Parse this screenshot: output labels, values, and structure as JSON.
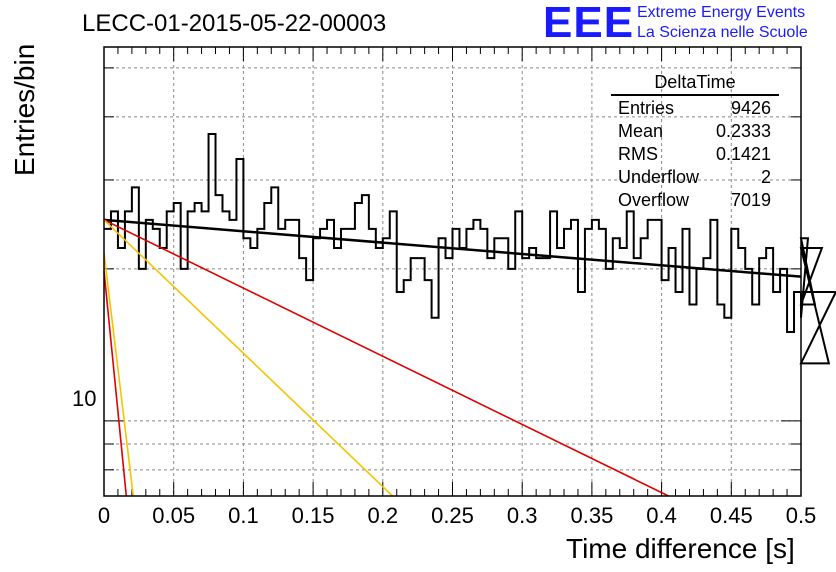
{
  "header": {
    "run_title": "LECC-01-2015-05-22-00003",
    "logo_text": "EEE",
    "logo_line1": "Extreme Energy Events",
    "logo_line2": "La Scienza nelle Scuole",
    "logo_color": "#1a1aff"
  },
  "stats": {
    "title": "DeltaTime",
    "rows": [
      {
        "label": "Entries",
        "value": "9426"
      },
      {
        "label": "Mean",
        "value": "0.2333"
      },
      {
        "label": "RMS",
        "value": "0.1421"
      },
      {
        "label": "Underflow",
        "value": "2"
      },
      {
        "label": "Overflow",
        "value": "7019"
      }
    ]
  },
  "chart_data": {
    "type": "line",
    "xlabel": "Time difference [s]",
    "ylabel": "Entries/bin",
    "xlim": [
      0,
      0.5
    ],
    "ylim": [
      7.1,
      55
    ],
    "yscale": "log",
    "grid": true,
    "x_ticks": [
      "0",
      "0.05",
      "0.1",
      "0.15",
      "0.2",
      "0.25",
      "0.3",
      "0.35",
      "0.4",
      "0.45",
      "0.5"
    ],
    "y_tick_labels": [
      "10"
    ],
    "histogram": {
      "bin_width": 0.005,
      "values": [
        24,
        26,
        22,
        26,
        29,
        20,
        25,
        24,
        22,
        26,
        27,
        20,
        26,
        27,
        26,
        37,
        28,
        26,
        25,
        33,
        23,
        22,
        24,
        27,
        29,
        24,
        25,
        25,
        21,
        19,
        23,
        24,
        25,
        22,
        24,
        24,
        27,
        28,
        24,
        22,
        23,
        26,
        18,
        19,
        21,
        21,
        19,
        16,
        23,
        21,
        24,
        22,
        24,
        25,
        24,
        21,
        23,
        23,
        20,
        26,
        21,
        22,
        21,
        21,
        26,
        22,
        24,
        25,
        18,
        24,
        25,
        24,
        20,
        23,
        22,
        26,
        21,
        23,
        25,
        25,
        19,
        22,
        18,
        24,
        17,
        20,
        21,
        25,
        17,
        16,
        24,
        22,
        20,
        17,
        21,
        22,
        18,
        20,
        15,
        18,
        16,
        23,
        17,
        22,
        13,
        18
      ],
      "color": "#000000"
    },
    "fits": [
      {
        "color": "#000000",
        "x": [
          0,
          0.5
        ],
        "y": [
          25,
          19.3
        ]
      },
      {
        "color": "#e00000",
        "x": [
          0,
          0.405
        ],
        "y": [
          25,
          6.9
        ]
      },
      {
        "color": "#f5c400",
        "x": [
          0,
          0.207
        ],
        "y": [
          25,
          6.9
        ]
      },
      {
        "color": "#f5c400",
        "x": [
          0,
          0.021
        ],
        "y": [
          21.5,
          6.9
        ]
      },
      {
        "color": "#e00000",
        "x": [
          0,
          0.016
        ],
        "y": [
          19.8,
          6.9
        ]
      }
    ]
  }
}
